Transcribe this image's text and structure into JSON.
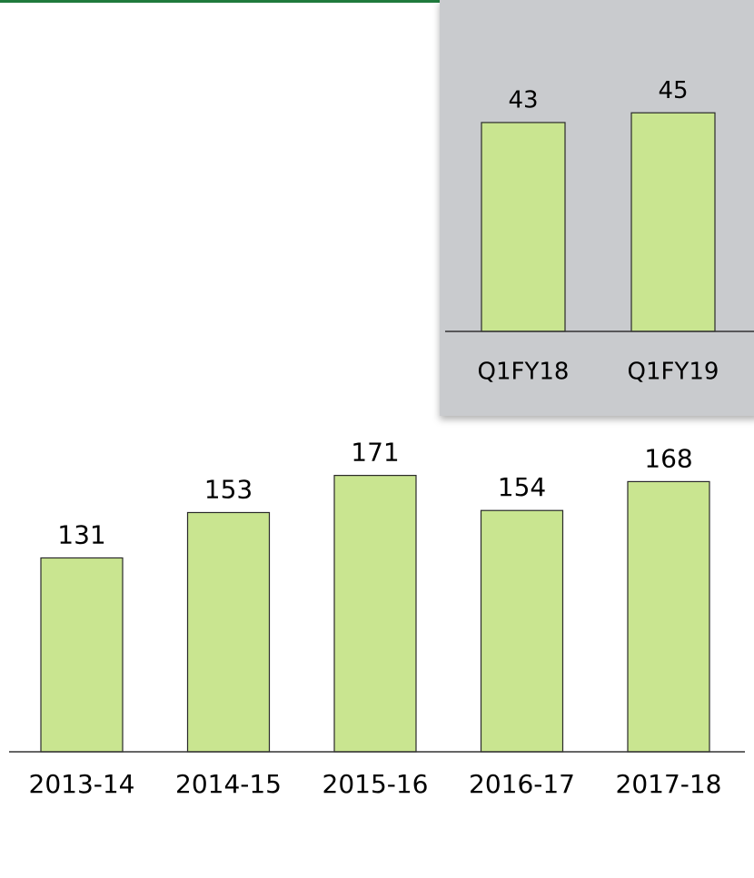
{
  "chart_data": [
    {
      "type": "bar",
      "categories": [
        "2013-14",
        "2014-15",
        "2015-16",
        "2016-17",
        "2017-18"
      ],
      "values": [
        131,
        153,
        171,
        154,
        168
      ],
      "color": "#c9e590",
      "ylim": [
        37,
        199
      ]
    },
    {
      "type": "bar",
      "categories": [
        "Q1FY18",
        "Q1FY19"
      ],
      "values": [
        43,
        45
      ],
      "color": "#c9e590",
      "ylim": [
        0,
        60
      ]
    }
  ]
}
